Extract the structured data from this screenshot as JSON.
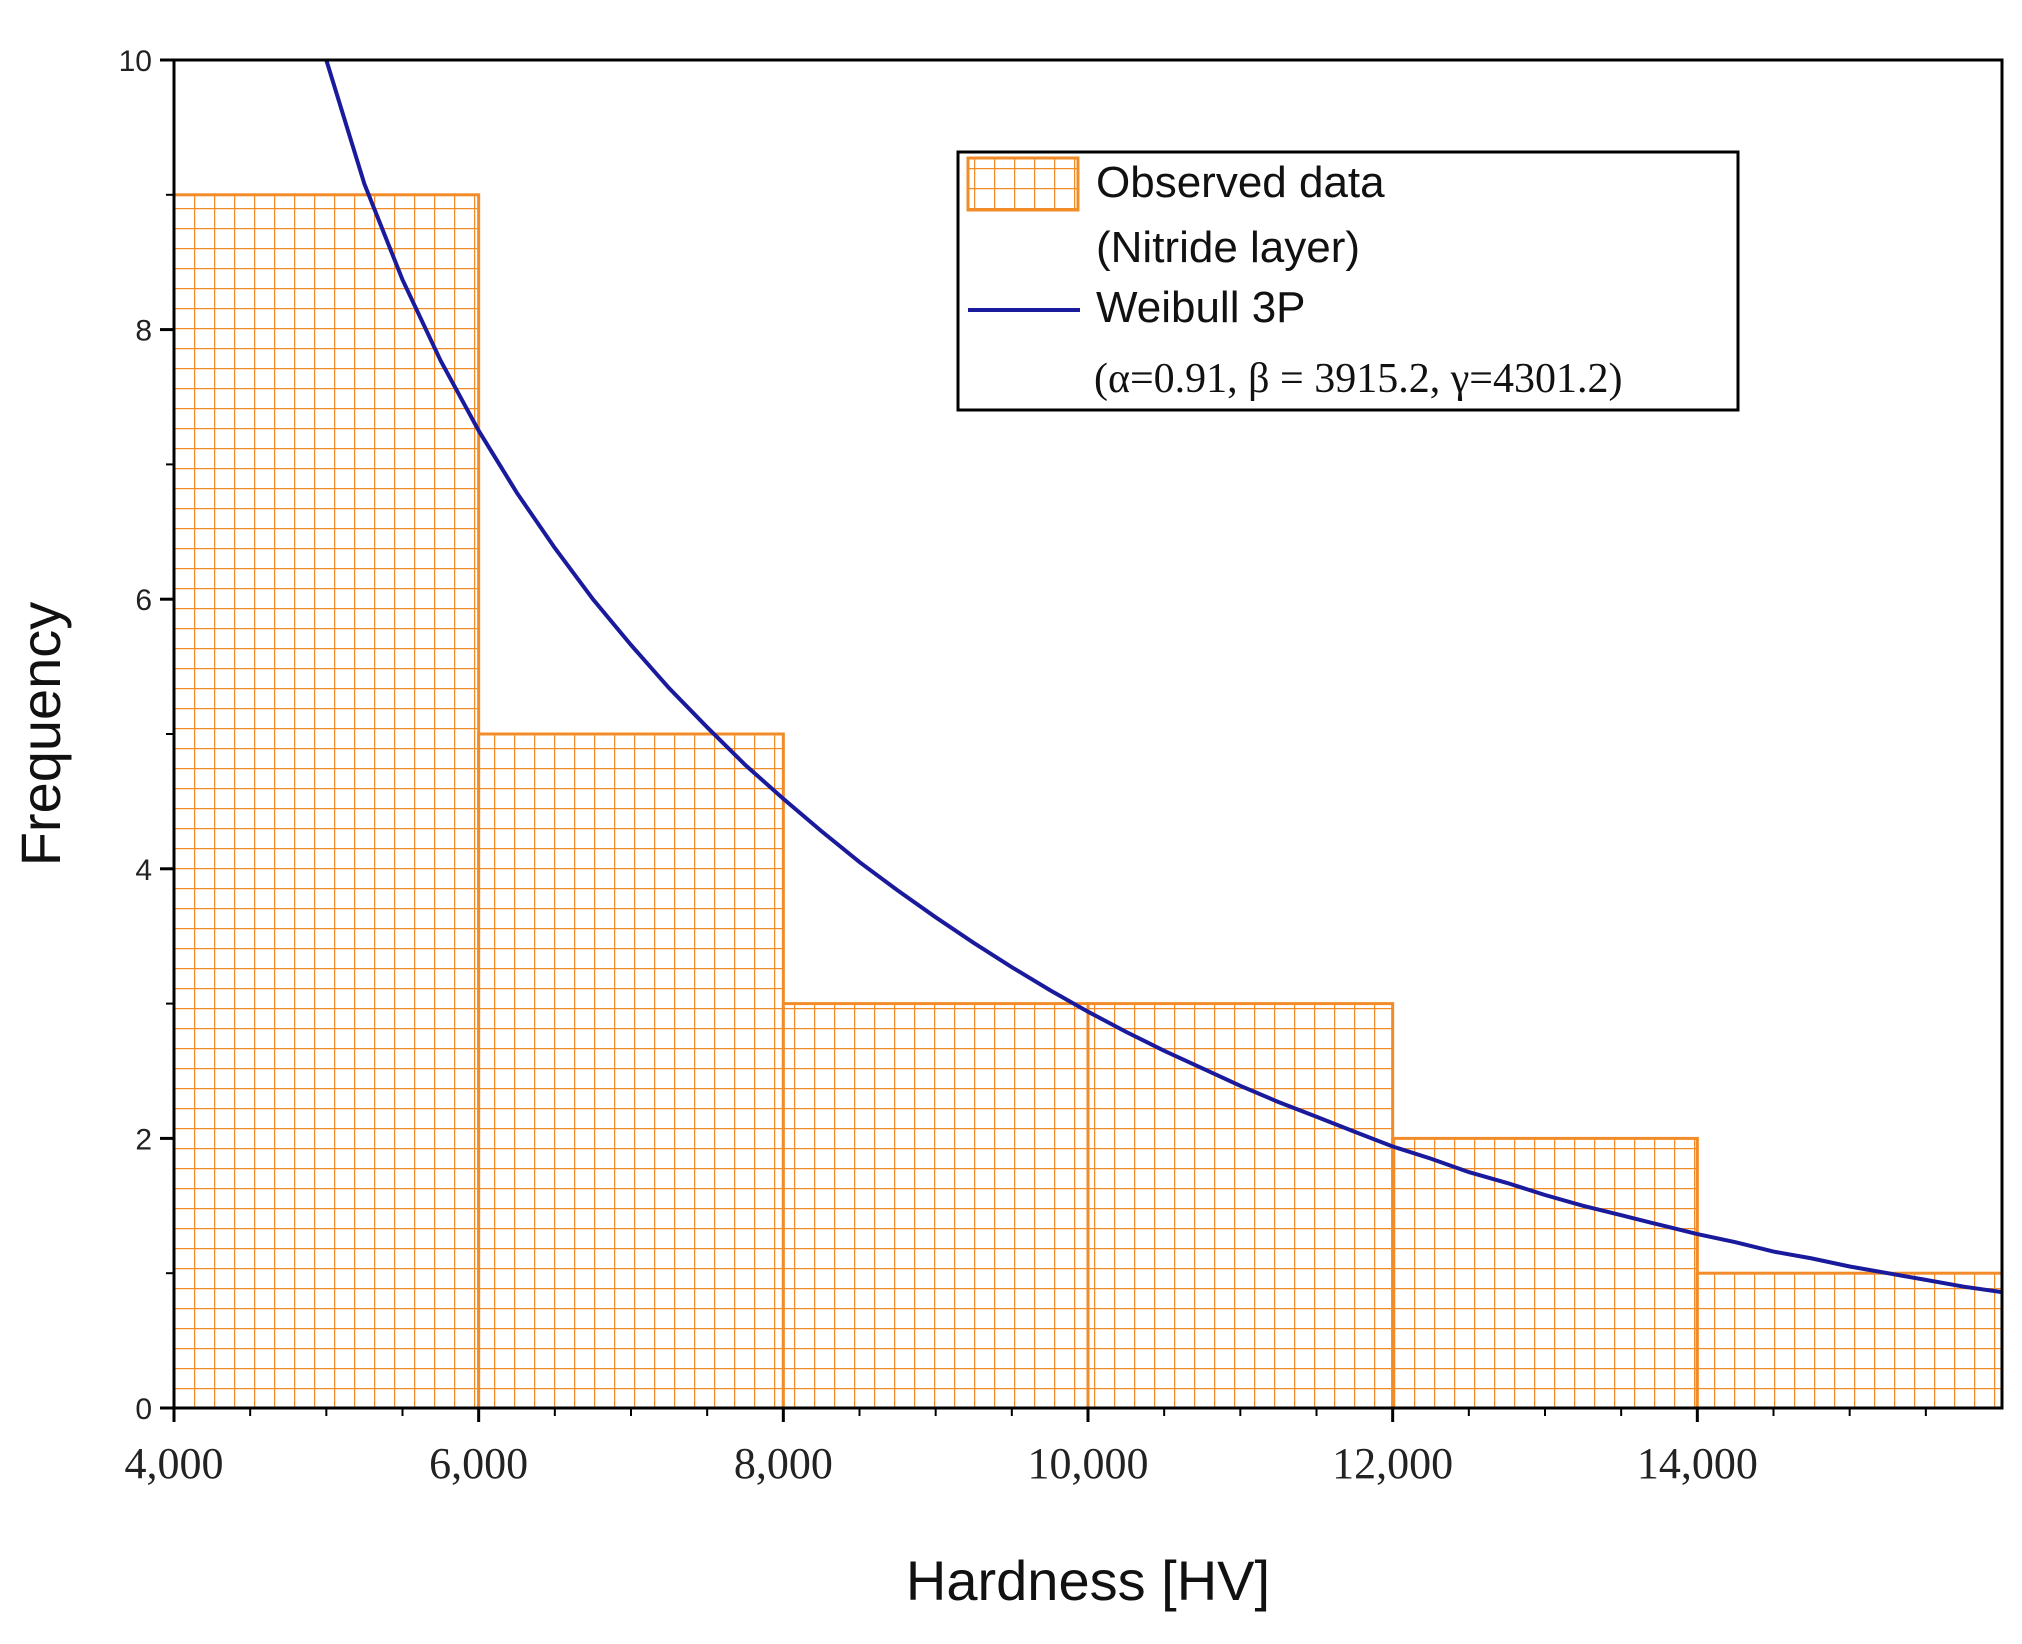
{
  "chart_data": {
    "type": "bar",
    "title": "",
    "xlabel": "Hardness [HV]",
    "ylabel": "Frequency",
    "xlim": [
      4000,
      16000
    ],
    "ylim": [
      0,
      10
    ],
    "x_ticks": [
      4000,
      6000,
      8000,
      10000,
      12000,
      14000
    ],
    "x_tick_labels": [
      "4,000",
      "6,000",
      "8,000",
      "10,000",
      "12,000",
      "14,000"
    ],
    "y_ticks": [
      0,
      2,
      4,
      6,
      8,
      10
    ],
    "y_tick_labels": [
      "0",
      "2",
      "4",
      "6",
      "8",
      "10"
    ],
    "bins": [
      {
        "x0": 4000,
        "x1": 6000,
        "value": 9
      },
      {
        "x0": 6000,
        "x1": 8000,
        "value": 5
      },
      {
        "x0": 8000,
        "x1": 10000,
        "value": 3
      },
      {
        "x0": 10000,
        "x1": 12000,
        "value": 3
      },
      {
        "x0": 12000,
        "x1": 14000,
        "value": 2
      },
      {
        "x0": 14000,
        "x1": 16000,
        "value": 1
      }
    ],
    "series": [
      {
        "name": "Observed data (Nitride layer)",
        "kind": "histogram",
        "color": "#f28c28"
      },
      {
        "name": "Weibull 3P",
        "kind": "line",
        "color": "#1a1a9c",
        "params": {
          "alpha": 0.91,
          "beta": 3915.2,
          "gamma": 4301.2
        },
        "x": [
          5000,
          5250,
          5500,
          5750,
          6000,
          6250,
          6500,
          6750,
          7000,
          7250,
          7500,
          7750,
          8000,
          8250,
          8500,
          8750,
          9000,
          9250,
          9500,
          9750,
          10000,
          10250,
          10500,
          10750,
          11000,
          11250,
          11500,
          11750,
          12000,
          12250,
          12500,
          12750,
          13000,
          13250,
          13500,
          13750,
          14000,
          14250,
          14500,
          14750,
          15000,
          15250,
          15500,
          15750,
          16000
        ],
        "y": [
          10.0,
          9.08,
          8.37,
          7.77,
          7.25,
          6.79,
          6.38,
          6.0,
          5.66,
          5.34,
          5.05,
          4.77,
          4.52,
          4.28,
          4.05,
          3.84,
          3.64,
          3.45,
          3.27,
          3.1,
          2.94,
          2.79,
          2.65,
          2.52,
          2.39,
          2.27,
          2.16,
          2.05,
          1.94,
          1.85,
          1.75,
          1.67,
          1.58,
          1.5,
          1.43,
          1.36,
          1.29,
          1.23,
          1.16,
          1.11,
          1.05,
          1.0,
          0.95,
          0.9,
          0.86
        ]
      }
    ],
    "legend": {
      "position": "top-right",
      "entries": [
        {
          "label": "Observed data",
          "sublabel": "(Nitride layer)"
        },
        {
          "label": "Weibull 3P",
          "sublabel": "(α=0.91, β = 3915.2, γ=4301.2)"
        }
      ]
    }
  }
}
